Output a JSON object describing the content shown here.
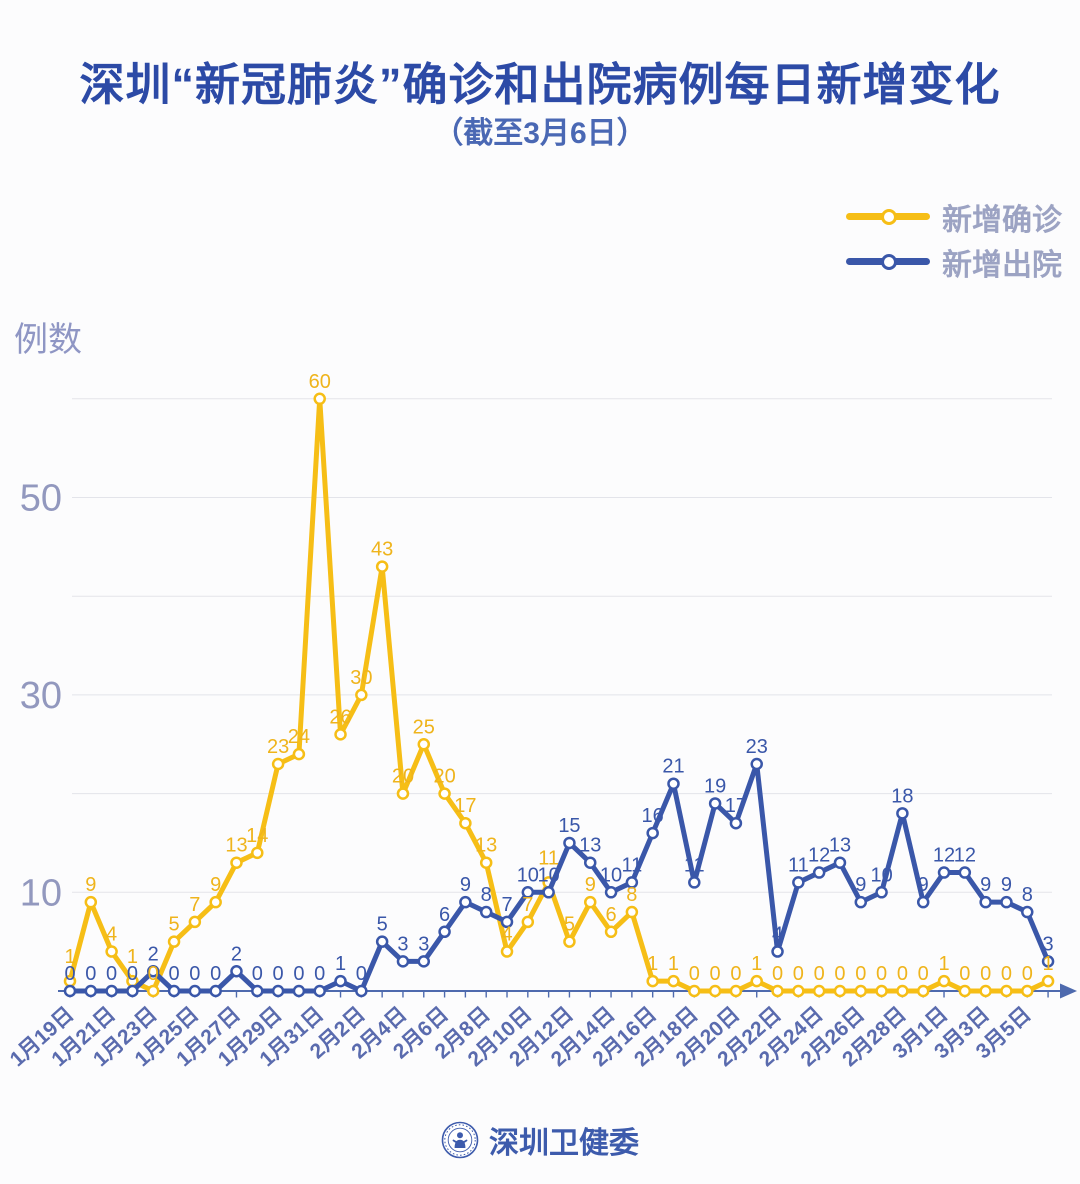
{
  "title": "深圳“新冠肺炎”确诊和出院病例每日新增变化",
  "subtitle": "（截至3月6日）",
  "y_axis_label": "例数",
  "legend": [
    {
      "label": "新增确诊",
      "color": "#F6BE16"
    },
    {
      "label": "新增出院",
      "color": "#3A57A9"
    }
  ],
  "footer": {
    "source_label": "深圳卫健委",
    "logo_icon": "shenzhen-health-commission-emblem"
  },
  "colors": {
    "title": "#2C4AA6",
    "subtitle": "#4A68B4",
    "legend_text": "#9CA3C3",
    "confirmed_line": "#F6BE16",
    "confirmed_label": "#EFB41C",
    "discharged_line": "#3A57A9",
    "discharged_label": "#3A57A9",
    "axis_line": "#4E6AAE",
    "date_label": "#5A6BAE",
    "ytick_label": "#9298BE",
    "gridline": "#E3E4EA",
    "background": "#fcfcfd"
  },
  "chart_data": {
    "type": "line",
    "x": [
      "1月19日",
      "1月20日",
      "1月21日",
      "1月22日",
      "1月23日",
      "1月24日",
      "1月25日",
      "1月26日",
      "1月27日",
      "1月28日",
      "1月29日",
      "1月30日",
      "1月31日",
      "2月1日",
      "2月2日",
      "2月3日",
      "2月4日",
      "2月5日",
      "2月6日",
      "2月7日",
      "2月8日",
      "2月9日",
      "2月10日",
      "2月11日",
      "2月12日",
      "2月13日",
      "2月14日",
      "2月15日",
      "2月16日",
      "2月17日",
      "2月18日",
      "2月19日",
      "2月20日",
      "2月21日",
      "2月22日",
      "2月23日",
      "2月24日",
      "2月25日",
      "2月26日",
      "2月27日",
      "2月28日",
      "2月29日",
      "3月1日",
      "3月2日",
      "3月3日",
      "3月4日",
      "3月5日",
      "3月6日"
    ],
    "x_tick_label_step": 2,
    "series": [
      {
        "name": "新增确诊",
        "color": "#F6BE16",
        "label_color": "#EFB41C",
        "values": [
          1,
          9,
          4,
          1,
          0,
          5,
          7,
          9,
          13,
          14,
          23,
          24,
          60,
          26,
          30,
          43,
          20,
          25,
          20,
          17,
          13,
          4,
          7,
          11,
          5,
          9,
          6,
          8,
          1,
          1,
          0,
          0,
          0,
          1,
          0,
          0,
          0,
          0,
          0,
          0,
          0,
          0,
          1,
          0,
          0,
          0,
          0,
          1
        ]
      },
      {
        "name": "新增出院",
        "color": "#3A57A9",
        "label_color": "#3A57A9",
        "values": [
          0,
          0,
          0,
          0,
          2,
          0,
          0,
          0,
          2,
          0,
          0,
          0,
          0,
          1,
          0,
          5,
          3,
          3,
          6,
          9,
          8,
          7,
          10,
          10,
          15,
          13,
          10,
          11,
          16,
          21,
          11,
          19,
          17,
          23,
          4,
          11,
          12,
          13,
          9,
          10,
          18,
          9,
          12,
          12,
          9,
          9,
          8,
          3
        ]
      }
    ],
    "title": "深圳“新冠肺炎”确诊和出院病例每日新增变化",
    "subtitle": "（截至3月6日）",
    "xlabel": "",
    "ylabel": "例数",
    "ylim": [
      0,
      63
    ],
    "yticks_labeled": [
      10,
      30,
      50
    ],
    "gridlines": [
      10,
      20,
      30,
      40,
      50,
      60
    ],
    "grid": true,
    "point_labels": true,
    "legend_position": "top-right"
  }
}
